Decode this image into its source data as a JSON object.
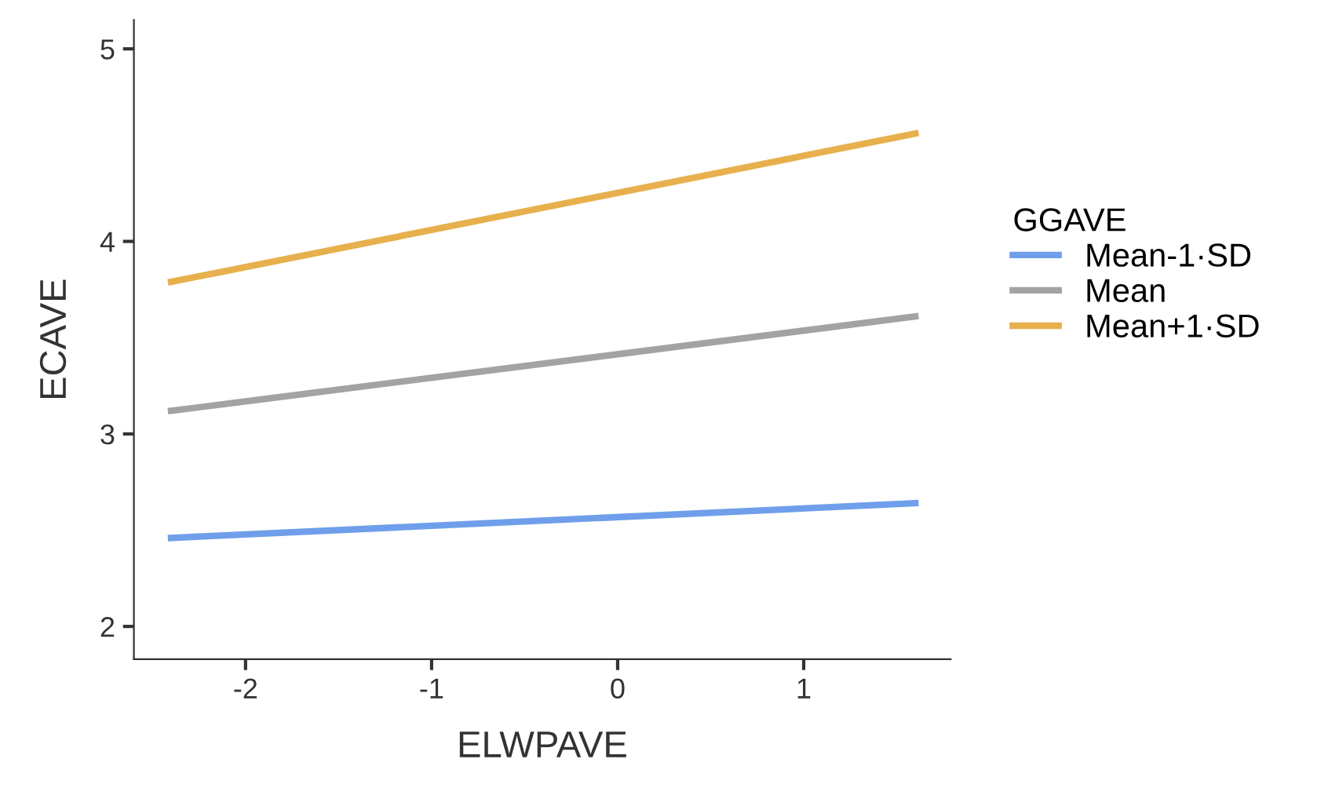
{
  "chart_data": {
    "type": "line",
    "xlabel": "ELWPAVE",
    "ylabel": "ECAVE",
    "legend_title": "GGAVE",
    "xlim": [
      -2.6,
      1.79
    ],
    "ylim": [
      1.83,
      5.15
    ],
    "xticks": [
      -2,
      -1,
      0,
      1
    ],
    "yticks": [
      2,
      3,
      4,
      5
    ],
    "grid": false,
    "legend": "right",
    "line_style": "solid",
    "marker": "none",
    "x": [
      -2.4,
      1.6
    ],
    "series": [
      {
        "name": "Mean-1·SD",
        "color": "#6f9fea",
        "values": [
          2.46,
          2.64
        ]
      },
      {
        "name": "Mean",
        "color": "#a3a3a3",
        "values": [
          3.12,
          3.61
        ]
      },
      {
        "name": "Mean+1·SD",
        "color": "#e7b04d",
        "values": [
          3.79,
          4.56
        ]
      }
    ]
  }
}
